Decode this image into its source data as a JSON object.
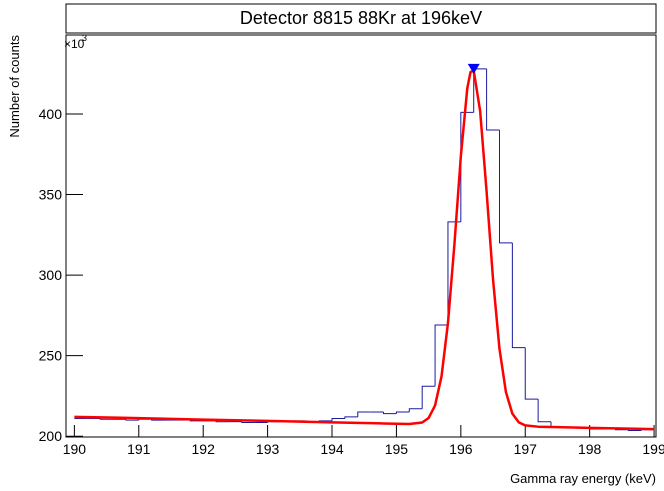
{
  "chart_data": {
    "type": "histogram",
    "title": "Detector 8815 88Kr at 196keV",
    "x_label": "Gamma ray energy (keV)",
    "y_label": "Number of counts",
    "y_multiplier": "×10",
    "y_exponent": "3",
    "bins": [
      190,
      190.2,
      190.4,
      190.6,
      190.8,
      191,
      191.2,
      191.4,
      191.6,
      191.8,
      192,
      192.2,
      192.4,
      192.6,
      192.8,
      193,
      193.2,
      193.4,
      193.6,
      193.8,
      194,
      194.2,
      194.4,
      194.6,
      194.8,
      195,
      195.2,
      195.4,
      195.6,
      195.8,
      196,
      196.2,
      196.4,
      196.6,
      196.8,
      197,
      197.2,
      197.4,
      197.6,
      197.8,
      198,
      198.2,
      198.4,
      198.6,
      198.8,
      199
    ],
    "values": [
      211,
      211,
      210.5,
      210.5,
      210,
      210.5,
      210,
      210,
      210,
      209.5,
      209.5,
      209,
      209,
      208.5,
      208.5,
      209,
      209,
      209.5,
      209,
      209.5,
      211,
      212,
      215,
      215,
      214,
      215,
      217,
      231,
      269,
      333,
      401,
      428,
      390,
      320,
      255,
      223,
      209,
      206,
      205.5,
      205,
      204.5,
      204.5,
      204,
      203.5,
      204
    ],
    "color": "#1a1aa0",
    "fit": {
      "color": "#ff0000",
      "x": [
        190,
        191,
        192,
        193,
        194,
        194.8,
        195.2,
        195.4,
        195.5,
        195.6,
        195.7,
        195.8,
        195.9,
        196,
        196.1,
        196.15,
        196.2,
        196.3,
        196.4,
        196.5,
        196.6,
        196.7,
        196.8,
        196.9,
        197,
        197.2,
        197.5,
        198,
        199
      ],
      "y": [
        212,
        211.2,
        210.3,
        209.5,
        208.6,
        207.9,
        207.6,
        208.5,
        211.3,
        219.1,
        237.1,
        270.2,
        318.9,
        373.7,
        415.9,
        426,
        426.9,
        401.7,
        351.8,
        297.3,
        254.2,
        227.4,
        214,
        208.6,
        206.7,
        205.9,
        205.6,
        205.2,
        204.4
      ]
    },
    "peak_marker": {
      "x": 196.2,
      "y": 428,
      "color": "#0000ff"
    },
    "xlim": [
      189.87,
      199.03
    ],
    "ylim": [
      199.5,
      449
    ],
    "xticks": [
      190,
      191,
      192,
      193,
      194,
      195,
      196,
      197,
      198,
      199
    ],
    "yticks": [
      200,
      250,
      300,
      350,
      400
    ]
  }
}
